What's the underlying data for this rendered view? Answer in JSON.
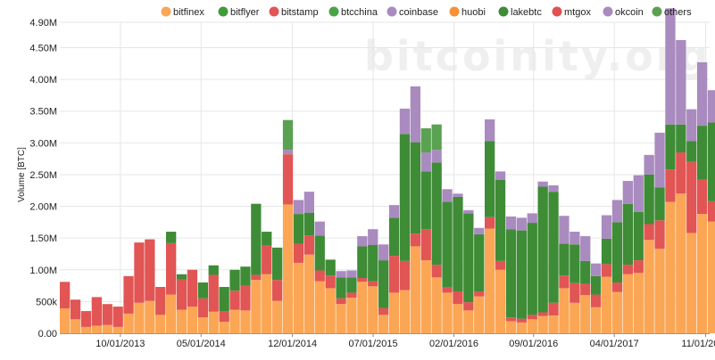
{
  "watermark": "bitcoinity.org",
  "chart_data": {
    "type": "bar",
    "stacked": true,
    "ylabel": "Volume [BTC]",
    "ylim": [
      0,
      4900000
    ],
    "yticks": [
      {
        "value": 0,
        "label": "0.00"
      },
      {
        "value": 500000,
        "label": "500k"
      },
      {
        "value": 1000000,
        "label": "1.00M"
      },
      {
        "value": 1500000,
        "label": "1.50M"
      },
      {
        "value": 2000000,
        "label": "2.00M"
      },
      {
        "value": 2500000,
        "label": "2.50M"
      },
      {
        "value": 3000000,
        "label": "3.00M"
      },
      {
        "value": 3500000,
        "label": "3.50M"
      },
      {
        "value": 4000000,
        "label": "4.00M"
      },
      {
        "value": 4500000,
        "label": "4.50M"
      },
      {
        "value": 4900000,
        "label": "4.90M"
      }
    ],
    "xticks": [
      {
        "index": 5.7,
        "label": "10/01/2013"
      },
      {
        "index": 13.3,
        "label": "05/01/2014"
      },
      {
        "index": 21.9,
        "label": "12/01/2014"
      },
      {
        "index": 29.5,
        "label": "07/01/2015"
      },
      {
        "index": 37.1,
        "label": "02/01/2016"
      },
      {
        "index": 44.6,
        "label": "09/01/2016"
      },
      {
        "index": 52.2,
        "label": "04/01/2017"
      },
      {
        "index": 60.8,
        "label": "11/01/2017"
      }
    ],
    "grid": true,
    "legend_position": "top",
    "series": [
      {
        "name": "bitfinex",
        "color": "#fba655",
        "values": [
          390000,
          220000,
          100000,
          120000,
          130000,
          100000,
          310000,
          480000,
          510000,
          290000,
          610000,
          370000,
          420000,
          250000,
          340000,
          180000,
          370000,
          360000,
          840000,
          930000,
          510000,
          2030000,
          1110000,
          1240000,
          820000,
          710000,
          460000,
          560000,
          810000,
          740000,
          290000,
          640000,
          680000,
          1370000,
          1150000,
          880000,
          640000,
          460000,
          360000,
          580000,
          1650000,
          1000000,
          190000,
          170000,
          220000,
          270000,
          280000,
          710000,
          480000,
          600000,
          410000,
          890000,
          650000,
          930000,
          950000,
          1470000,
          1330000,
          2070000,
          2200000,
          1580000,
          1880000,
          1760000
        ]
      },
      {
        "name": "bitflyer",
        "color": "#419b38",
        "values": [
          0,
          0,
          0,
          0,
          0,
          0,
          0,
          0,
          0,
          0,
          0,
          0,
          0,
          0,
          0,
          0,
          0,
          0,
          0,
          0,
          0,
          0,
          0,
          0,
          0,
          0,
          0,
          0,
          0,
          0,
          0,
          0,
          0,
          0,
          0,
          0,
          0,
          0,
          0,
          0,
          0,
          0,
          0,
          0,
          0,
          0,
          0,
          0,
          0,
          0,
          0,
          0,
          0,
          0,
          0,
          0,
          0,
          0,
          0,
          0,
          0,
          0
        ]
      },
      {
        "name": "bitstamp",
        "color": "#e15554",
        "values": [
          420000,
          310000,
          250000,
          450000,
          330000,
          320000,
          590000,
          950000,
          970000,
          440000,
          810000,
          480000,
          580000,
          300000,
          580000,
          170000,
          300000,
          390000,
          80000,
          460000,
          330000,
          790000,
          300000,
          300000,
          170000,
          200000,
          90000,
          80000,
          60000,
          80000,
          110000,
          580000,
          460000,
          200000,
          490000,
          200000,
          80000,
          200000,
          130000,
          80000,
          180000,
          140000,
          60000,
          60000,
          70000,
          60000,
          200000,
          200000,
          310000,
          180000,
          200000,
          200000,
          150000,
          150000,
          200000,
          250000,
          450000,
          510000,
          650000,
          1120000,
          540000,
          320000
        ]
      },
      {
        "name": "btcchina",
        "color": "#4aa344",
        "values": [
          0,
          0,
          0,
          0,
          0,
          0,
          0,
          0,
          0,
          0,
          0,
          0,
          0,
          0,
          0,
          0,
          0,
          0,
          0,
          0,
          0,
          0,
          0,
          0,
          0,
          0,
          0,
          0,
          0,
          0,
          0,
          0,
          0,
          0,
          0,
          0,
          0,
          0,
          0,
          0,
          0,
          0,
          0,
          0,
          0,
          0,
          0,
          0,
          0,
          0,
          0,
          0,
          0,
          0,
          0,
          0,
          0,
          0,
          0,
          0,
          0,
          0
        ]
      },
      {
        "name": "coinbase",
        "color": "#a98bbf",
        "values": [
          0,
          0,
          0,
          0,
          0,
          0,
          0,
          0,
          0,
          0,
          0,
          0,
          0,
          0,
          0,
          0,
          0,
          0,
          0,
          0,
          0,
          0,
          0,
          0,
          0,
          0,
          0,
          0,
          0,
          0,
          0,
          0,
          0,
          0,
          0,
          0,
          0,
          0,
          0,
          0,
          0,
          0,
          0,
          0,
          0,
          0,
          0,
          0,
          0,
          0,
          0,
          0,
          0,
          0,
          0,
          0,
          0,
          0,
          0,
          0,
          0,
          0
        ]
      },
      {
        "name": "huobi",
        "color": "#fb8f36",
        "values": [
          0,
          0,
          0,
          0,
          0,
          0,
          0,
          0,
          0,
          0,
          0,
          0,
          0,
          0,
          0,
          0,
          0,
          0,
          0,
          0,
          0,
          0,
          0,
          0,
          0,
          0,
          0,
          0,
          0,
          0,
          0,
          0,
          0,
          0,
          0,
          0,
          0,
          0,
          0,
          0,
          0,
          0,
          0,
          0,
          0,
          0,
          0,
          0,
          0,
          0,
          0,
          0,
          0,
          0,
          0,
          0,
          0,
          0,
          0,
          0,
          0,
          0
        ]
      },
      {
        "name": "lakebtc",
        "color": "#3e8c36",
        "values": [
          0,
          0,
          0,
          0,
          0,
          0,
          0,
          0,
          0,
          0,
          180000,
          80000,
          0,
          250000,
          150000,
          380000,
          330000,
          300000,
          1120000,
          210000,
          510000,
          0,
          470000,
          360000,
          550000,
          250000,
          330000,
          240000,
          500000,
          570000,
          750000,
          600000,
          2000000,
          1440000,
          910000,
          1610000,
          1350000,
          1490000,
          1400000,
          900000,
          1200000,
          1280000,
          1390000,
          1390000,
          1450000,
          1980000,
          1750000,
          500000,
          610000,
          360000,
          290000,
          400000,
          950000,
          960000,
          760000,
          780000,
          520000,
          710000,
          440000,
          330000,
          850000,
          1240000
        ]
      },
      {
        "name": "mtgox",
        "color": "#e0514f",
        "values": [
          0,
          0,
          0,
          0,
          0,
          0,
          0,
          0,
          0,
          0,
          0,
          0,
          0,
          0,
          0,
          0,
          0,
          0,
          0,
          0,
          0,
          0,
          0,
          0,
          0,
          0,
          0,
          0,
          0,
          0,
          0,
          0,
          0,
          0,
          0,
          0,
          0,
          0,
          0,
          0,
          0,
          0,
          0,
          0,
          0,
          0,
          0,
          0,
          0,
          0,
          0,
          0,
          0,
          0,
          0,
          0,
          0,
          0,
          0,
          0,
          0,
          0
        ]
      },
      {
        "name": "okcoin",
        "color": "#a98bbf",
        "values": [
          0,
          0,
          0,
          0,
          0,
          0,
          0,
          0,
          0,
          0,
          0,
          0,
          0,
          0,
          0,
          0,
          0,
          0,
          0,
          0,
          0,
          70000,
          220000,
          330000,
          220000,
          0,
          100000,
          110000,
          160000,
          250000,
          250000,
          200000,
          400000,
          880000,
          300000,
          200000,
          200000,
          50000,
          50000,
          100000,
          340000,
          130000,
          200000,
          200000,
          150000,
          80000,
          100000,
          440000,
          200000,
          390000,
          200000,
          370000,
          350000,
          360000,
          580000,
          310000,
          860000,
          1830000,
          1330000,
          500000,
          1000000,
          510000
        ]
      },
      {
        "name": "others",
        "color": "#5aa152",
        "values": [
          0,
          0,
          0,
          0,
          0,
          0,
          0,
          0,
          0,
          0,
          0,
          0,
          0,
          0,
          0,
          0,
          0,
          0,
          0,
          0,
          0,
          470000,
          0,
          0,
          0,
          0,
          0,
          0,
          0,
          0,
          0,
          0,
          0,
          0,
          380000,
          400000,
          0,
          0,
          0,
          0,
          0,
          0,
          0,
          0,
          0,
          0,
          0,
          0,
          0,
          0,
          0,
          0,
          0,
          0,
          0,
          0,
          0,
          0,
          0,
          0,
          0,
          0
        ]
      }
    ]
  }
}
